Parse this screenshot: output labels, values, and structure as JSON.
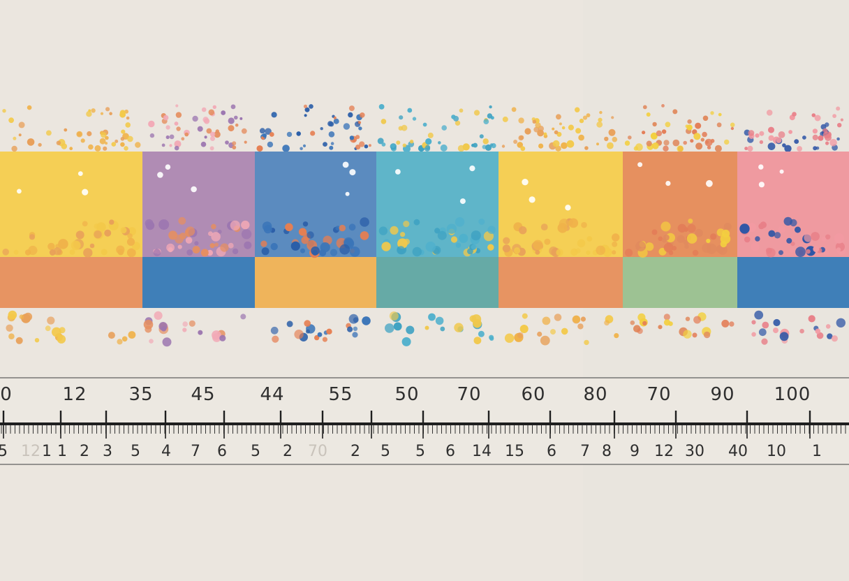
{
  "colors": {
    "background": "#ebe6df",
    "yellow": "#f5cf55",
    "purple": "#b08cb4",
    "blue": "#5b8bbf",
    "teal": "#5fb5c9",
    "orange": "#e6905f",
    "pink": "#ef9aa0",
    "strip_orange": "#e79462",
    "strip_blue": "#3f7fb8",
    "strip_amber": "#efb45b",
    "strip_teal": "#66aaa6",
    "strip_green": "#9dc293",
    "ink": "#2e2e2e"
  },
  "blocks": [
    {
      "top_color": "yellow",
      "bottom_color": "strip_orange",
      "dot_colors": [
        "#f3c94a",
        "#f0b24a",
        "#e8a05a"
      ]
    },
    {
      "top_color": "purple",
      "bottom_color": "strip_blue",
      "dot_colors": [
        "#9c76b0",
        "#f2a9b6",
        "#e58f61"
      ]
    },
    {
      "top_color": "blue",
      "bottom_color": "strip_amber",
      "dot_colors": [
        "#2b5ea8",
        "#e57e52",
        "#3a74b8"
      ]
    },
    {
      "top_color": "teal",
      "bottom_color": "strip_teal",
      "dot_colors": [
        "#4fb0cc",
        "#f0c84b",
        "#3fa2c2"
      ]
    },
    {
      "top_color": "yellow",
      "bottom_color": "strip_orange",
      "dot_colors": [
        "#f3c94a",
        "#e8a05a",
        "#f0b24a"
      ]
    },
    {
      "top_color": "orange",
      "bottom_color": "strip_green",
      "dot_colors": [
        "#e37d57",
        "#f3cf3f",
        "#e08a5e"
      ]
    },
    {
      "top_color": "pink",
      "bottom_color": "strip_blue",
      "dot_colors": [
        "#f29aa2",
        "#2f56a6",
        "#e87f88"
      ]
    }
  ],
  "ruler": {
    "top_labels": [
      "0",
      "12",
      "35",
      "45",
      "44",
      "55",
      "50",
      "70",
      "60",
      "80",
      "70",
      "90",
      "100"
    ],
    "bottom_labels": [
      "5",
      "12",
      "1",
      "1",
      "2",
      "3",
      "5",
      "4",
      "7",
      "6",
      "5",
      "2",
      "70",
      "2",
      "5",
      "5",
      "6",
      "14",
      "15",
      "6",
      "7",
      "8",
      "9",
      "12",
      "30",
      "40",
      "10",
      "1"
    ],
    "faint_bottom": [
      1,
      12
    ]
  }
}
